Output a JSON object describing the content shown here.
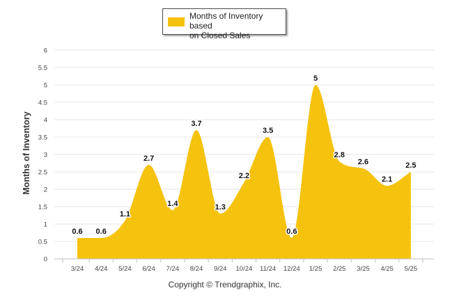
{
  "chart_data": {
    "type": "area",
    "title": "",
    "xlabel": "",
    "ylabel": "Months of Inventory",
    "legend": {
      "position": "top-center",
      "entries": [
        "Months of Inventory based on Closed Sales"
      ]
    },
    "grid": true,
    "ylim": [
      0,
      6
    ],
    "y_ticks": [
      "0",
      "0.5",
      "1",
      "1.5",
      "2",
      "2.5",
      "3",
      "3.5",
      "4",
      "4.5",
      "5",
      "5.5",
      "6"
    ],
    "categories": [
      "3/24",
      "4/24",
      "5/24",
      "6/24",
      "7/24",
      "8/24",
      "9/24",
      "10/24",
      "11/24",
      "12/24",
      "1/25",
      "2/25",
      "3/25",
      "4/25",
      "5/25"
    ],
    "series": [
      {
        "name": "Months of Inventory based on Closed Sales",
        "color": "#f5c20d",
        "values": [
          0.6,
          0.6,
          1.1,
          2.7,
          1.4,
          3.7,
          1.3,
          2.2,
          3.5,
          0.6,
          5,
          2.8,
          2.6,
          2.1,
          2.5
        ],
        "data_labels": [
          "0.6",
          "0.6",
          "1.1",
          "2.7",
          "1.4",
          "3.7",
          "1.3",
          "2.2",
          "3.5",
          "0.6",
          "5",
          "2.8",
          "2.6",
          "2.1",
          "2.5"
        ]
      }
    ]
  },
  "legend_label_line1": "Months of Inventory based",
  "legend_label_line2": "on Closed Sales",
  "copyright": "Copyright © Trendgraphix, Inc."
}
